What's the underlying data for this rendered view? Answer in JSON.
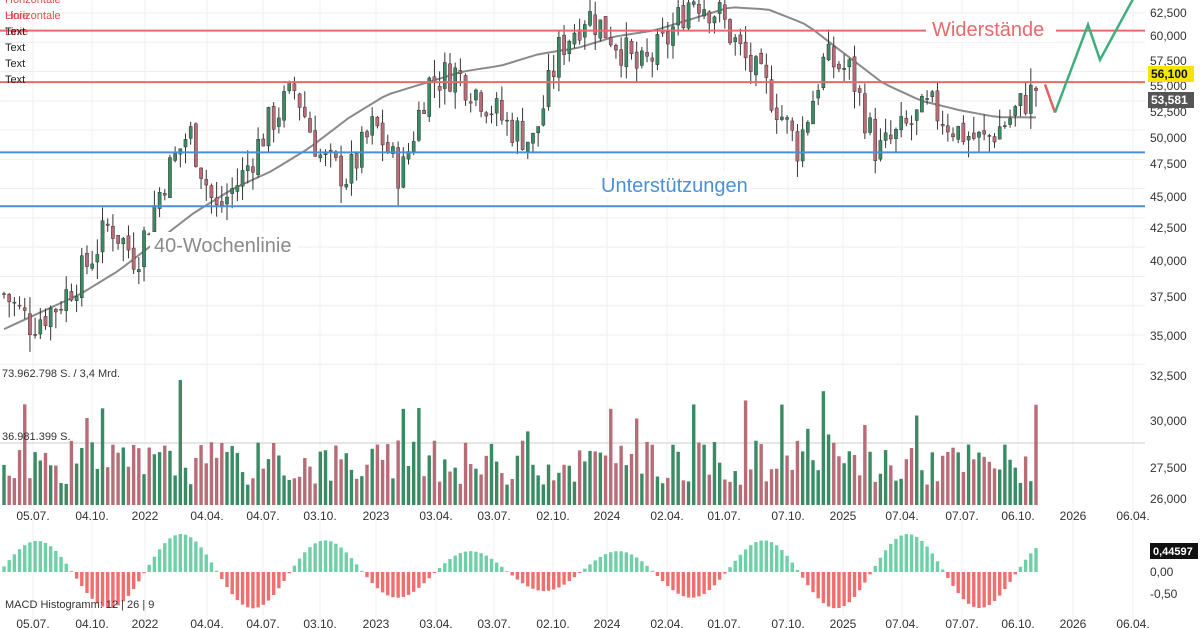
{
  "legend": {
    "items": [
      {
        "label": "Horizontale Linie",
        "color": "#e24b4b"
      },
      {
        "label": "Horizontale Linie",
        "color": "#e24b4b"
      },
      {
        "label": "Text",
        "color": "#222222"
      },
      {
        "label": "Text",
        "color": "#222222"
      },
      {
        "label": "Text",
        "color": "#222222"
      },
      {
        "label": "Text",
        "color": "#222222"
      }
    ]
  },
  "annotations": {
    "resistance_label": "Widerstände",
    "support_label": "Unterstützungen",
    "ma_label": "40-Wochenlinie"
  },
  "colors": {
    "up": "#3a8a64",
    "down": "#b86c77",
    "resistance": "#e8696a",
    "support": "#4a90d9",
    "ma": "#8a8a8a",
    "projection_red": "#e5605f",
    "projection_green": "#3fae7c",
    "macd_pos": "#6fd0a8",
    "macd_neg": "#ef6f6f",
    "price_badge_bg": "#f5e500",
    "ma_badge_bg": "#555555"
  },
  "volume": {
    "max_label": "73.962.798 S. / 3,4 Mrd.",
    "mid_label": "36.981.399 S."
  },
  "macd": {
    "label": "MACD Histogramm: 12 | 26 | 9",
    "last_value": "0,44597",
    "ticks": [
      "0,00",
      "-0,50"
    ]
  },
  "chart_data": {
    "type": "candlestick",
    "timeframe": "weekly",
    "x_tick_labels": [
      "05.07.",
      "04.10.",
      "2022",
      "04.04.",
      "04.07.",
      "03.10.",
      "2023",
      "03.04.",
      "03.07.",
      "02.10.",
      "2024",
      "02.04.",
      "01.07.",
      "07.10.",
      "2025",
      "07.04.",
      "07.07.",
      "06.10.",
      "2026",
      "06.04."
    ],
    "y_tick_labels": [
      "62,500",
      "60,000",
      "57,500",
      "55,000",
      "52,500",
      "50,000",
      "47,500",
      "45,000",
      "42,500",
      "40,000",
      "37,500",
      "35,000",
      "32,500",
      "30,000",
      "27,500",
      "26,000"
    ],
    "y_range": [
      34.0,
      63.5
    ],
    "last_price": "56,100",
    "moving_average_40w_last": "53,581",
    "resistance_levels": [
      61.0,
      56.6
    ],
    "support_levels": [
      50.6,
      46.0
    ],
    "close_path": [
      38.5,
      36.0,
      37.5,
      40.5,
      44.5,
      41.5,
      48.0,
      52.5,
      45.5,
      48.5,
      53.0,
      56.0,
      50.0,
      48.5,
      53.0,
      48.5,
      56.5,
      57.5,
      55.5,
      53.0,
      51.5,
      59.5,
      62.5,
      60.5,
      57.5,
      60.0,
      64.0,
      62.5,
      58.5,
      55.5,
      51.0,
      58.5,
      57.5,
      50.5,
      52.5,
      54.5,
      52.5,
      51.5,
      53.5,
      56.1
    ],
    "ma40_path": [
      35.5,
      37.0,
      38.5,
      40.5,
      43.0,
      45.5,
      47.5,
      49.0,
      51.0,
      53.5,
      55.5,
      56.5,
      57.5,
      58.0,
      59.0,
      59.5,
      60.5,
      61.0,
      62.0,
      63.0,
      62.8,
      61.5,
      59.0,
      56.5,
      55.0,
      54.2,
      53.6,
      53.581
    ],
    "projection_red": [
      56.4,
      54.0
    ],
    "projection_green": [
      54.0,
      61.5,
      58.5,
      64.0
    ]
  }
}
